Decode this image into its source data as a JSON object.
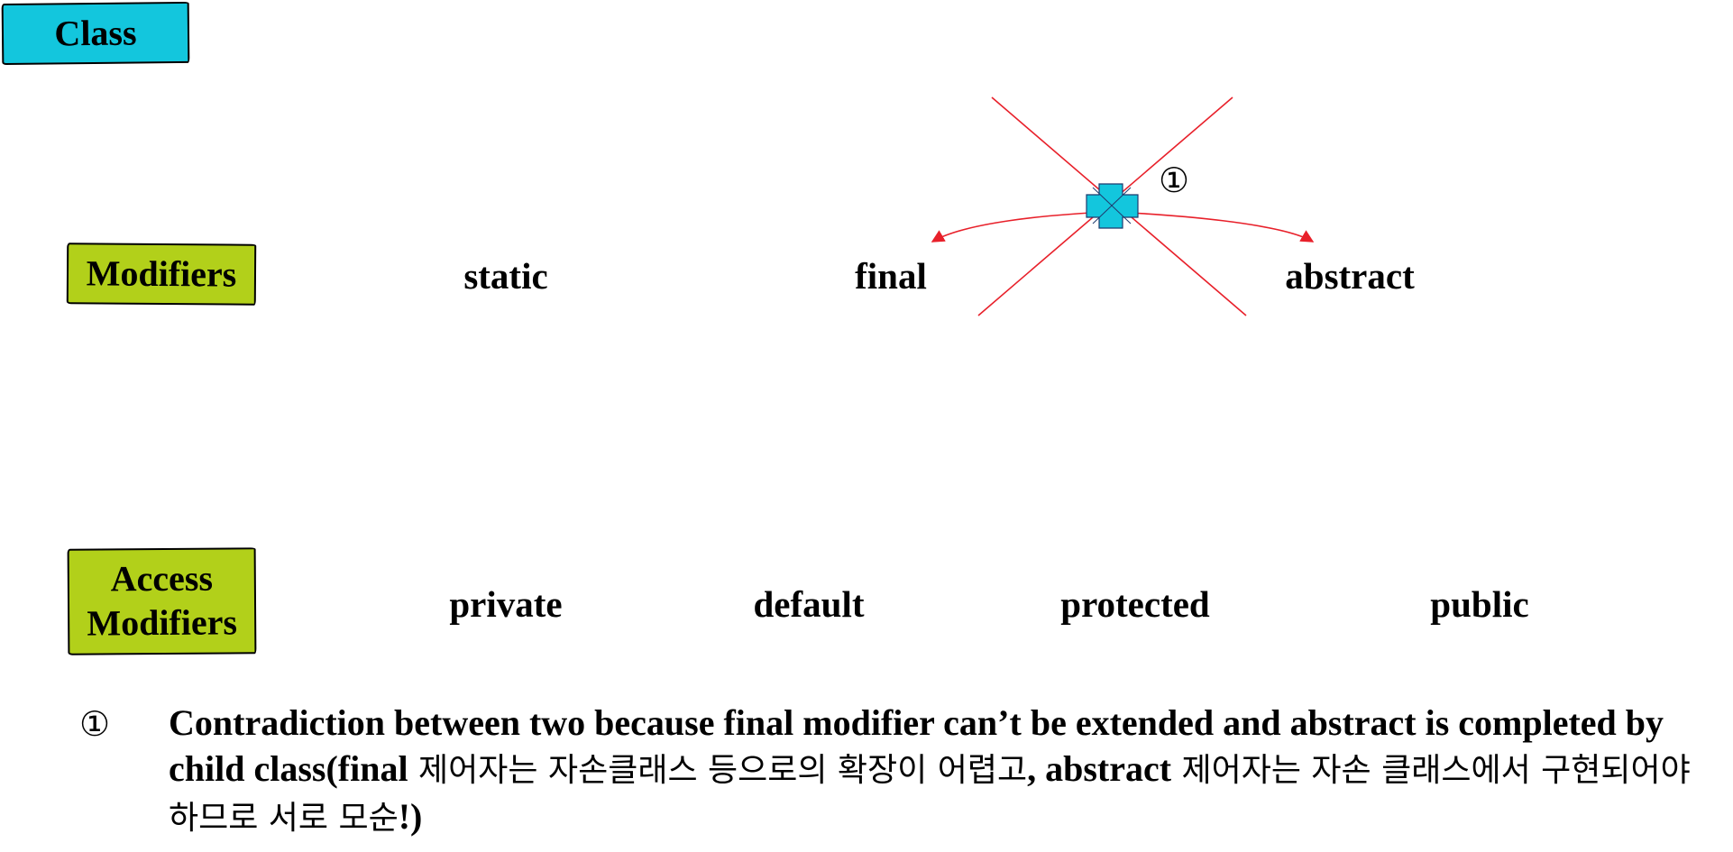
{
  "labels": {
    "class": "Class",
    "modifiers": "Modifiers",
    "access_line1": "Access",
    "access_line2": "Modifiers"
  },
  "modifiers": {
    "static": "static",
    "final": "final",
    "abstract": "abstract"
  },
  "access_modifiers": {
    "private": "private",
    "default": "default",
    "protected": "protected",
    "public": "public"
  },
  "conflict_marker": "①",
  "note": {
    "marker": "①",
    "en": "Contradiction between two because final modifier can’t be extended and abstract is completed by child class(",
    "kw_final": "final",
    "ko_1": " 제어자는 자손클래스 등으로의 확장이 어렵고",
    "comma": ", ",
    "kw_abstract": "abstract",
    "ko_2": " 제어자는 자손 클래스에서 구현되어야 하므로 서로 모순",
    "end": "!)"
  },
  "colors": {
    "class_tag": "#13c6dd",
    "modifier_tag": "#b2d01a",
    "conflict_line": "#e8202a",
    "conflict_node": "#13c6dd"
  },
  "icons": {
    "conflict_node": "cross-shape-icon"
  }
}
